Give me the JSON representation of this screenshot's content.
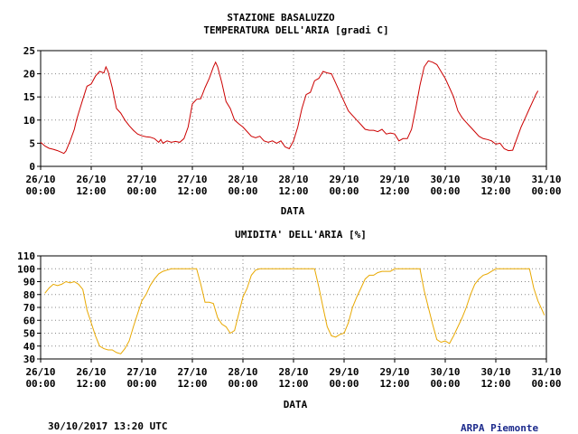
{
  "footer": {
    "timestamp": "30/10/2017 13:20 UTC",
    "credit": "ARPA Piemonte"
  },
  "colors": {
    "temperature_line": "#cc0000",
    "humidity_line": "#e8a800",
    "grid": "#888888",
    "credit_text": "#1c2a8c"
  },
  "chart_data": [
    {
      "type": "line",
      "title": "STAZIONE BASALUZZO",
      "subtitle": "TEMPERATURA DELL'ARIA [gradi C]",
      "xlabel": "DATA",
      "ylabel": "",
      "ylim": [
        0,
        25
      ],
      "yticks": [
        0,
        5,
        10,
        15,
        20,
        25
      ],
      "grid": true,
      "x_hours_from_start_of_axis": true,
      "xlim_hours": [
        0,
        120
      ],
      "xticks": [
        {
          "date": "26/10",
          "time": "00:00"
        },
        {
          "date": "26/10",
          "time": "12:00"
        },
        {
          "date": "27/10",
          "time": "00:00"
        },
        {
          "date": "27/10",
          "time": "12:00"
        },
        {
          "date": "28/10",
          "time": "00:00"
        },
        {
          "date": "28/10",
          "time": "12:00"
        },
        {
          "date": "29/10",
          "time": "00:00"
        },
        {
          "date": "29/10",
          "time": "12:00"
        },
        {
          "date": "30/10",
          "time": "00:00"
        },
        {
          "date": "30/10",
          "time": "12:00"
        },
        {
          "date": "31/10",
          "time": "00:00"
        }
      ],
      "series": [
        {
          "name": "",
          "points": [
            [
              0,
              5.2
            ],
            [
              1,
              4.4
            ],
            [
              2,
              3.9
            ],
            [
              3,
              3.7
            ],
            [
              4,
              3.4
            ],
            [
              5,
              3.0
            ],
            [
              5.5,
              2.8
            ],
            [
              6,
              3.3
            ],
            [
              7,
              5.5
            ],
            [
              8,
              8.0
            ],
            [
              8.5,
              10.0
            ],
            [
              9,
              11.5
            ],
            [
              10,
              14.5
            ],
            [
              11,
              17.3
            ],
            [
              12,
              17.8
            ],
            [
              13,
              19.5
            ],
            [
              14,
              20.5
            ],
            [
              15,
              20.2
            ],
            [
              15.5,
              21.5
            ],
            [
              16,
              20.5
            ],
            [
              17,
              17.0
            ],
            [
              18,
              12.5
            ],
            [
              19,
              11.5
            ],
            [
              20,
              10.0
            ],
            [
              21,
              8.8
            ],
            [
              22,
              7.8
            ],
            [
              23,
              7.0
            ],
            [
              24,
              6.6
            ],
            [
              25,
              6.4
            ],
            [
              26,
              6.3
            ],
            [
              27,
              6.0
            ],
            [
              28,
              5.2
            ],
            [
              28.5,
              5.8
            ],
            [
              29,
              5.0
            ],
            [
              30,
              5.5
            ],
            [
              31,
              5.2
            ],
            [
              32,
              5.4
            ],
            [
              33,
              5.2
            ],
            [
              34,
              6.0
            ],
            [
              35,
              8.5
            ],
            [
              36,
              13.5
            ],
            [
              37,
              14.5
            ],
            [
              38,
              14.6
            ],
            [
              39,
              17.0
            ],
            [
              40,
              19.0
            ],
            [
              41,
              21.5
            ],
            [
              41.5,
              22.5
            ],
            [
              42,
              21.5
            ],
            [
              43,
              18.0
            ],
            [
              44,
              14.0
            ],
            [
              45,
              12.5
            ],
            [
              46,
              10.0
            ],
            [
              47,
              9.2
            ],
            [
              48,
              8.5
            ],
            [
              49,
              7.5
            ],
            [
              50,
              6.5
            ],
            [
              51,
              6.2
            ],
            [
              52,
              6.5
            ],
            [
              53,
              5.5
            ],
            [
              54,
              5.2
            ],
            [
              55,
              5.5
            ],
            [
              56,
              5.0
            ],
            [
              57,
              5.5
            ],
            [
              58,
              4.2
            ],
            [
              59,
              3.8
            ],
            [
              60,
              5.5
            ],
            [
              61,
              8.5
            ],
            [
              62,
              12.5
            ],
            [
              63,
              15.5
            ],
            [
              64,
              16.0
            ],
            [
              65,
              18.5
            ],
            [
              66,
              19.0
            ],
            [
              67,
              20.5
            ],
            [
              68,
              20.2
            ],
            [
              69,
              20.0
            ],
            [
              70,
              18.0
            ],
            [
              71,
              16.0
            ],
            [
              72,
              14.0
            ],
            [
              73,
              12.0
            ],
            [
              74,
              11.0
            ],
            [
              75,
              10.0
            ],
            [
              76,
              9.0
            ],
            [
              77,
              8.0
            ],
            [
              78,
              7.8
            ],
            [
              79,
              7.8
            ],
            [
              80,
              7.5
            ],
            [
              81,
              8.0
            ],
            [
              82,
              7.0
            ],
            [
              83,
              7.2
            ],
            [
              84,
              7.0
            ],
            [
              85,
              5.5
            ],
            [
              86,
              6.0
            ],
            [
              87,
              6.0
            ],
            [
              88,
              8.0
            ],
            [
              89,
              12.5
            ],
            [
              90,
              17.5
            ],
            [
              91,
              21.5
            ],
            [
              92,
              22.8
            ],
            [
              93,
              22.5
            ],
            [
              94,
              22.0
            ],
            [
              95,
              20.5
            ],
            [
              96,
              19.0
            ],
            [
              97,
              17.0
            ],
            [
              98,
              15.0
            ],
            [
              99,
              12.0
            ],
            [
              100,
              10.5
            ],
            [
              101,
              9.5
            ],
            [
              102,
              8.5
            ],
            [
              103,
              7.5
            ],
            [
              104,
              6.5
            ],
            [
              105,
              6.0
            ],
            [
              106,
              5.8
            ],
            [
              107,
              5.5
            ],
            [
              108,
              4.8
            ],
            [
              109,
              5.0
            ],
            [
              110,
              3.8
            ],
            [
              111,
              3.4
            ],
            [
              112,
              3.5
            ],
            [
              113,
              6.0
            ],
            [
              114,
              8.5
            ],
            [
              115,
              10.5
            ],
            [
              116,
              12.5
            ],
            [
              117,
              14.5
            ],
            [
              117.5,
              15.5
            ],
            [
              118,
              16.3
            ]
          ]
        }
      ]
    },
    {
      "type": "line",
      "title": "UMIDITA' DELL'ARIA [%]",
      "xlabel": "DATA",
      "ylabel": "",
      "ylim": [
        30,
        110
      ],
      "yticks": [
        30,
        40,
        50,
        60,
        70,
        80,
        90,
        100,
        110
      ],
      "grid": true,
      "xlim_hours": [
        0,
        120
      ],
      "xticks": [
        {
          "date": "26/10",
          "time": "00:00"
        },
        {
          "date": "26/10",
          "time": "12:00"
        },
        {
          "date": "27/10",
          "time": "00:00"
        },
        {
          "date": "27/10",
          "time": "12:00"
        },
        {
          "date": "28/10",
          "time": "00:00"
        },
        {
          "date": "28/10",
          "time": "12:00"
        },
        {
          "date": "29/10",
          "time": "00:00"
        },
        {
          "date": "29/10",
          "time": "12:00"
        },
        {
          "date": "30/10",
          "time": "00:00"
        },
        {
          "date": "30/10",
          "time": "12:00"
        },
        {
          "date": "31/10",
          "time": "00:00"
        }
      ],
      "series": [
        {
          "name": "",
          "points": [
            [
              1,
              81
            ],
            [
              2,
              85
            ],
            [
              3,
              88
            ],
            [
              4,
              87
            ],
            [
              5,
              88
            ],
            [
              6,
              90
            ],
            [
              7,
              89
            ],
            [
              8,
              90
            ],
            [
              9,
              88
            ],
            [
              10,
              84
            ],
            [
              11,
              68
            ],
            [
              12,
              58
            ],
            [
              13,
              48
            ],
            [
              14,
              40
            ],
            [
              15,
              38
            ],
            [
              16,
              37
            ],
            [
              17,
              37
            ],
            [
              18,
              35
            ],
            [
              19,
              34
            ],
            [
              20,
              38
            ],
            [
              21,
              44
            ],
            [
              22,
              55
            ],
            [
              23,
              65
            ],
            [
              24,
              75
            ],
            [
              25,
              80
            ],
            [
              26,
              87
            ],
            [
              27,
              92
            ],
            [
              28,
              96
            ],
            [
              29,
              98
            ],
            [
              30,
              99
            ],
            [
              31,
              100
            ],
            [
              32,
              100
            ],
            [
              33,
              100
            ],
            [
              34,
              100
            ],
            [
              35,
              100
            ],
            [
              36,
              100
            ],
            [
              37,
              100
            ],
            [
              38,
              88
            ],
            [
              39,
              74
            ],
            [
              40,
              74
            ],
            [
              41,
              73
            ],
            [
              42,
              62
            ],
            [
              43,
              57
            ],
            [
              44,
              55
            ],
            [
              45,
              50
            ],
            [
              46,
              52
            ],
            [
              47,
              65
            ],
            [
              48,
              78
            ],
            [
              49,
              85
            ],
            [
              50,
              95
            ],
            [
              51,
              99
            ],
            [
              52,
              100
            ],
            [
              53,
              100
            ],
            [
              54,
              100
            ],
            [
              55,
              100
            ],
            [
              56,
              100
            ],
            [
              57,
              100
            ],
            [
              58,
              100
            ],
            [
              59,
              100
            ],
            [
              60,
              100
            ],
            [
              61,
              100
            ],
            [
              62,
              100
            ],
            [
              63,
              100
            ],
            [
              64,
              100
            ],
            [
              65,
              100
            ],
            [
              66,
              86
            ],
            [
              67,
              70
            ],
            [
              68,
              55
            ],
            [
              69,
              48
            ],
            [
              70,
              47
            ],
            [
              71,
              49
            ],
            [
              72,
              50
            ],
            [
              73,
              58
            ],
            [
              74,
              70
            ],
            [
              75,
              78
            ],
            [
              76,
              85
            ],
            [
              77,
              92
            ],
            [
              78,
              95
            ],
            [
              79,
              95
            ],
            [
              80,
              97
            ],
            [
              81,
              98
            ],
            [
              82,
              98
            ],
            [
              83,
              98
            ],
            [
              84,
              100
            ],
            [
              85,
              100
            ],
            [
              86,
              100
            ],
            [
              87,
              100
            ],
            [
              88,
              100
            ],
            [
              89,
              100
            ],
            [
              90,
              100
            ],
            [
              91,
              83
            ],
            [
              92,
              70
            ],
            [
              93,
              57
            ],
            [
              94,
              45
            ],
            [
              95,
              43
            ],
            [
              96,
              44
            ],
            [
              97,
              42
            ],
            [
              98,
              48
            ],
            [
              99,
              55
            ],
            [
              100,
              62
            ],
            [
              101,
              70
            ],
            [
              102,
              80
            ],
            [
              103,
              88
            ],
            [
              104,
              92
            ],
            [
              105,
              95
            ],
            [
              106,
              96
            ],
            [
              107,
              98
            ],
            [
              108,
              100
            ],
            [
              109,
              100
            ],
            [
              110,
              100
            ],
            [
              111,
              100
            ],
            [
              112,
              100
            ],
            [
              113,
              100
            ],
            [
              114,
              100
            ],
            [
              115,
              100
            ],
            [
              116,
              100
            ],
            [
              117,
              85
            ],
            [
              118,
              75
            ],
            [
              119,
              68
            ],
            [
              119.5,
              64
            ]
          ]
        }
      ]
    }
  ]
}
